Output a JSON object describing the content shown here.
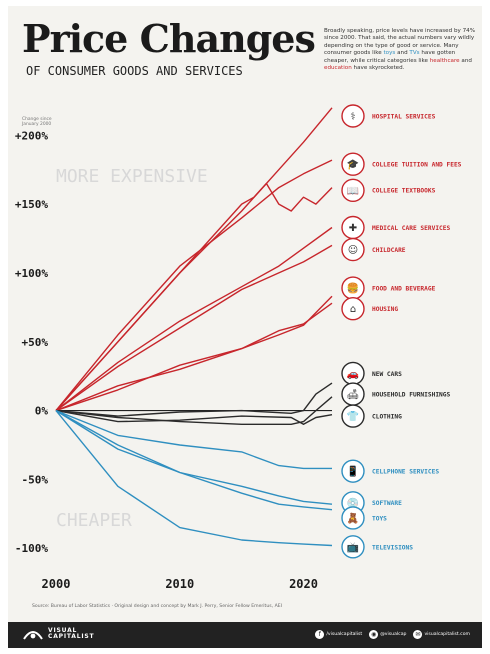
{
  "header": {
    "title": "Price Changes",
    "subtitle": "OF CONSUMER GOODS AND SERVICES",
    "intro_1": "Broadly speaking, price levels have increased by 74% since 2000. That said, the actual numbers vary wildly depending on the type of good or service. Many consumer goods like ",
    "intro_toys": "toys",
    "intro_and": " and ",
    "intro_tvs": "TVs",
    "intro_2": " have gotten cheaper, while critical categories like ",
    "intro_healthcare": "healthcare",
    "intro_and2": " and ",
    "intro_education": "education",
    "intro_3": " have skyrocketed."
  },
  "source": "Source: Bureau of Labor Statistics · Original design and concept by Mark J. Perry, Senior Fellow Emeritus, AEI",
  "footer": {
    "brand_line1": "VISUAL",
    "brand_line2": "CAPITALIST",
    "social": [
      {
        "icon": "f",
        "handle": "/visualcapitalist"
      },
      {
        "icon": "◉",
        "handle": "@visualcap"
      },
      {
        "icon": "✉",
        "handle": "visualcapitalist.com"
      }
    ]
  },
  "colors": {
    "red": "#c7262c",
    "dark": "#2b2b2b",
    "blue": "#2f8fc0",
    "background": "#f4f3ef",
    "zero_line": "#222222",
    "region_label": "#d8d8d8"
  },
  "chart_data": {
    "type": "line",
    "axis_note": "Change since January 2000",
    "region_labels": {
      "up": "MORE EXPENSIVE",
      "down": "CHEAPER"
    },
    "xlim": [
      2000,
      2022.3
    ],
    "ylim": [
      -110,
      222
    ],
    "x_ticks": [
      2000,
      2010,
      2020
    ],
    "x_tick_labels": [
      "2000",
      "2010",
      "2020"
    ],
    "y_ticks": [
      200,
      150,
      100,
      50,
      0,
      -50,
      -100
    ],
    "y_tick_labels": [
      "+200%",
      "+150%",
      "+100%",
      "+50%",
      "0%",
      "-50%",
      "-100%"
    ],
    "series": [
      {
        "name": "HOSPITAL SERVICES",
        "group": "red",
        "icon": "hospital-icon",
        "glyph": "⚕",
        "x": [
          2000,
          2005,
          2010,
          2015,
          2018,
          2020,
          2022.3
        ],
        "y": [
          0,
          50,
          100,
          145,
          175,
          195,
          220
        ]
      },
      {
        "name": "COLLEGE TUITION AND FEES",
        "group": "red",
        "icon": "graduation-cap-icon",
        "glyph": "🎓",
        "x": [
          2000,
          2005,
          2010,
          2015,
          2018,
          2020,
          2022.3
        ],
        "y": [
          0,
          55,
          105,
          140,
          162,
          172,
          182
        ]
      },
      {
        "name": "COLLEGE TEXTBOOKS",
        "group": "red",
        "icon": "textbook-icon",
        "glyph": "📖",
        "x": [
          2000,
          2005,
          2010,
          2015,
          2016,
          2017,
          2018,
          2019,
          2020,
          2021,
          2022.3
        ],
        "y": [
          0,
          50,
          100,
          150,
          155,
          165,
          150,
          145,
          155,
          150,
          162
        ]
      },
      {
        "name": "MEDICAL CARE SERVICES",
        "group": "red",
        "icon": "medical-kit-icon",
        "glyph": "✚",
        "x": [
          2000,
          2005,
          2010,
          2015,
          2018,
          2020,
          2022.3
        ],
        "y": [
          0,
          35,
          65,
          90,
          105,
          118,
          133
        ]
      },
      {
        "name": "CHILDCARE",
        "group": "red",
        "icon": "stroller-icon",
        "glyph": "☺",
        "x": [
          2000,
          2005,
          2010,
          2015,
          2018,
          2020,
          2022.3
        ],
        "y": [
          0,
          32,
          60,
          88,
          100,
          108,
          120
        ]
      },
      {
        "name": "FOOD AND BEVERAGE",
        "group": "red",
        "icon": "food-icon",
        "glyph": "🍔",
        "x": [
          2000,
          2005,
          2010,
          2015,
          2018,
          2020,
          2022.3
        ],
        "y": [
          0,
          15,
          33,
          45,
          55,
          62,
          83
        ]
      },
      {
        "name": "HOUSING",
        "group": "red",
        "icon": "house-icon",
        "glyph": "⌂",
        "x": [
          2000,
          2005,
          2010,
          2015,
          2018,
          2020,
          2022.3
        ],
        "y": [
          0,
          18,
          30,
          45,
          58,
          63,
          78
        ]
      },
      {
        "name": "NEW CARS",
        "group": "dark",
        "icon": "car-icon",
        "glyph": "🚗",
        "x": [
          2000,
          2005,
          2010,
          2015,
          2019,
          2020,
          2021,
          2022.3
        ],
        "y": [
          0,
          -4,
          -1,
          0,
          -2,
          0,
          12,
          20
        ]
      },
      {
        "name": "HOUSEHOLD FURNISHINGS",
        "group": "dark",
        "icon": "sofa-icon",
        "glyph": "🛋",
        "x": [
          2000,
          2005,
          2010,
          2015,
          2019,
          2020,
          2021,
          2022.3
        ],
        "y": [
          0,
          -5,
          -8,
          -10,
          -10,
          -8,
          0,
          10
        ]
      },
      {
        "name": "CLOTHING",
        "group": "dark",
        "icon": "shirt-icon",
        "glyph": "👕",
        "x": [
          2000,
          2005,
          2010,
          2015,
          2019,
          2020,
          2021,
          2022.3
        ],
        "y": [
          0,
          -8,
          -7,
          -4,
          -5,
          -10,
          -5,
          -3
        ]
      },
      {
        "name": "CELLPHONE SERVICES",
        "group": "blue",
        "icon": "cellphone-icon",
        "glyph": "📱",
        "x": [
          2000,
          2005,
          2010,
          2015,
          2018,
          2020,
          2022.3
        ],
        "y": [
          0,
          -18,
          -25,
          -30,
          -40,
          -42,
          -42
        ]
      },
      {
        "name": "SOFTWARE",
        "group": "blue",
        "icon": "software-icon",
        "glyph": "💿",
        "x": [
          2000,
          2005,
          2010,
          2015,
          2018,
          2020,
          2022.3
        ],
        "y": [
          0,
          -28,
          -45,
          -55,
          -62,
          -66,
          -68
        ]
      },
      {
        "name": "TOYS",
        "group": "blue",
        "icon": "toy-icon",
        "glyph": "🧸",
        "x": [
          2000,
          2005,
          2010,
          2015,
          2018,
          2020,
          2022.3
        ],
        "y": [
          0,
          -25,
          -45,
          -60,
          -68,
          -70,
          -72
        ]
      },
      {
        "name": "TELEVISIONS",
        "group": "blue",
        "icon": "television-icon",
        "glyph": "📺",
        "x": [
          2000,
          2005,
          2010,
          2015,
          2018,
          2020,
          2022.3
        ],
        "y": [
          0,
          -55,
          -85,
          -94,
          -96,
          -97,
          -98
        ]
      }
    ],
    "label_y": [
      214,
      179,
      160,
      133,
      117,
      89,
      74,
      27,
      12,
      -4,
      -44,
      -67,
      -78,
      -99
    ]
  }
}
